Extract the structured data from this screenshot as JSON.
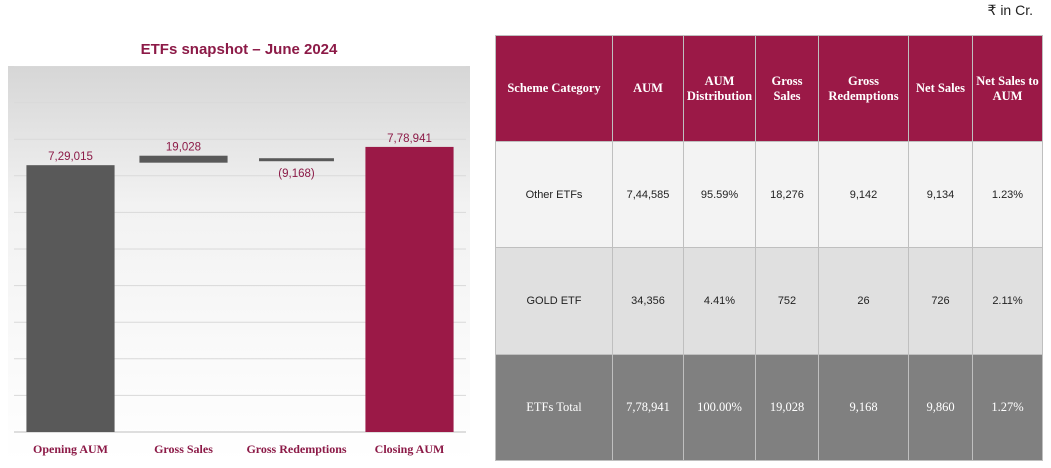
{
  "unit_note": "₹ in Cr.",
  "chart_data": {
    "type": "bar",
    "subtype": "waterfall",
    "title": "ETFs snapshot – June 2024",
    "categories": [
      "Opening AUM",
      "Gross Sales",
      "Gross Redemptions",
      "Closing AUM"
    ],
    "values": [
      729015,
      19028,
      -9168,
      778941
    ],
    "value_labels": [
      "7,29,015",
      "19,028",
      "(9,168)",
      "7,78,941"
    ],
    "ylim": [
      0,
      1000000
    ],
    "xlabel": "",
    "ylabel": "",
    "grid": true,
    "colors": {
      "opening": "#595959",
      "flow": "#595959",
      "closing": "#9b1947",
      "label": "#8c1a47"
    }
  },
  "table": {
    "headers": [
      "Scheme Category",
      "AUM",
      "AUM Distribution",
      "Gross Sales",
      "Gross Redemptions",
      "Net Sales",
      "Net Sales to AUM"
    ],
    "rows": [
      [
        "Other ETFs",
        "7,44,585",
        "95.59%",
        "18,276",
        "9,142",
        "9,134",
        "1.23%"
      ],
      [
        "GOLD ETF",
        "34,356",
        "4.41%",
        "752",
        "26",
        "726",
        "2.11%"
      ],
      [
        "ETFs Total",
        "7,78,941",
        "100.00%",
        "19,028",
        "9,168",
        "9,860",
        "1.27%"
      ]
    ]
  }
}
